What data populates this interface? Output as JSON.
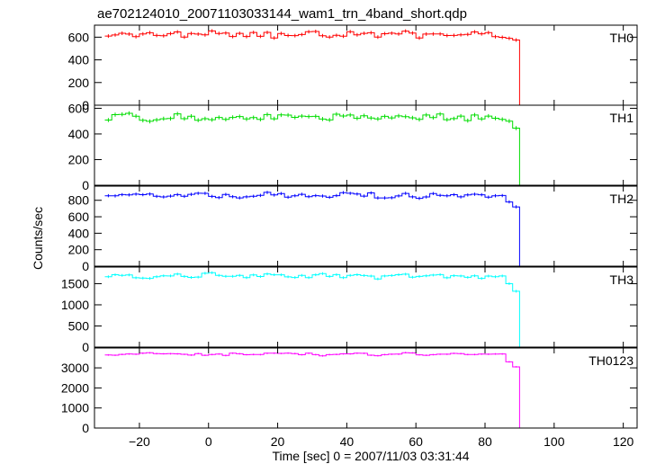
{
  "chart_data": {
    "type": "line",
    "title": "ae702124010_20071103033144_wam1_trn_4band_short.qdp",
    "xlabel": "Time [sec] 0 = 2007/11/03 03:31:44",
    "ylabel": "Counts/sec",
    "xlim": [
      -33,
      124
    ],
    "xticks": [
      -20,
      0,
      20,
      40,
      60,
      80,
      100,
      120
    ],
    "grid": false,
    "drop_time": 90,
    "panels": [
      {
        "name": "TH0",
        "color": "#ff0000",
        "ylim": [
          0,
          690
        ],
        "yticks": [
          0,
          200,
          400,
          600
        ],
        "level": 625,
        "noise": 45,
        "tail": [
          590,
          575,
          0
        ],
        "wiggles": [
          0.3,
          -0.9,
          0.6,
          0.1,
          -0.4,
          1.0,
          -0.2,
          0.5,
          -1.1,
          0.7,
          0.2,
          -0.5,
          0.9,
          -0.3,
          0.4,
          -0.8,
          0.6,
          -0.1,
          0.3,
          -0.6
        ]
      },
      {
        "name": "TH1",
        "color": "#00dd00",
        "ylim": [
          0,
          610
        ],
        "yticks": [
          0,
          200,
          400,
          600
        ],
        "level": 530,
        "noise": 45,
        "tail": [
          500,
          445,
          0
        ],
        "wiggles": [
          -0.2,
          0.8,
          -0.7,
          0.4,
          0.1,
          -1.0,
          0.6,
          0.2,
          -0.4,
          0.9,
          -0.6,
          0.3,
          -0.1,
          0.7,
          -0.9,
          0.5,
          0.0,
          -0.3,
          0.8,
          -0.5
        ]
      },
      {
        "name": "TH2",
        "color": "#0000ff",
        "ylim": [
          0,
          950
        ],
        "yticks": [
          0,
          200,
          400,
          600,
          800
        ],
        "level": 860,
        "noise": 55,
        "tail": [
          780,
          720,
          0
        ],
        "wiggles": [
          0.5,
          -0.3,
          0.2,
          -1.0,
          0.8,
          0.1,
          -0.6,
          0.9,
          -0.2,
          0.4,
          -0.8,
          0.3,
          0.7,
          -0.4,
          0.1,
          -0.9,
          0.6,
          -0.1,
          0.2,
          0.5
        ]
      },
      {
        "name": "TH3",
        "color": "#00ffff",
        "ylim": [
          0,
          1850
        ],
        "yticks": [
          0,
          500,
          1000,
          1500
        ],
        "level": 1680,
        "noise": 90,
        "tail": [
          1500,
          1320,
          0
        ],
        "wiggles": [
          0.1,
          0.4,
          -0.8,
          0.6,
          -0.2,
          0.9,
          -0.5,
          0.3,
          0.0,
          -0.7,
          0.8,
          -0.3,
          0.5,
          -0.9,
          0.2,
          0.6,
          -0.4,
          0.1,
          -0.6,
          0.7
        ]
      },
      {
        "name": "TH0123",
        "color": "#ff00ff",
        "ylim": [
          0,
          3900
        ],
        "yticks": [
          0,
          1000,
          2000,
          3000
        ],
        "level": 3680,
        "noise": 110,
        "tail": [
          3300,
          3050,
          0
        ],
        "wiggles": [
          -0.4,
          0.2,
          0.7,
          -0.5,
          0.3,
          -0.9,
          0.6,
          0.0,
          -0.2,
          0.8,
          -0.6,
          0.4,
          0.1,
          -0.7,
          0.9,
          -0.3,
          0.5,
          -0.8,
          0.2,
          0.3
        ]
      }
    ]
  }
}
